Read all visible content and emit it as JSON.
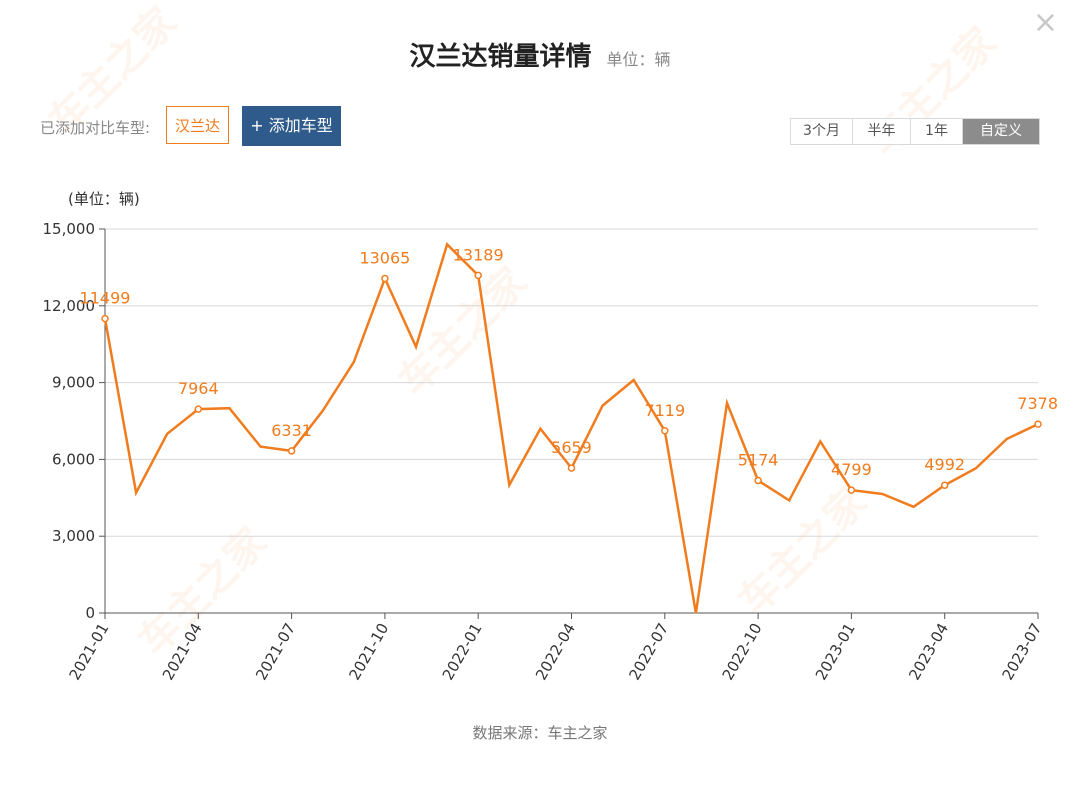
{
  "header": {
    "title": "汉兰达销量详情",
    "unit_label": "单位：辆",
    "close_symbol": "×"
  },
  "compare": {
    "label": "已添加对比车型:",
    "models": [
      "汉兰达"
    ],
    "add_button": "+ 添加车型"
  },
  "ranges": {
    "options": [
      "3个月",
      "半年",
      "1年",
      "自定义"
    ],
    "selected": "自定义"
  },
  "footer": {
    "source": "数据来源：车主之家"
  },
  "watermark": "车主之家",
  "colors": {
    "line": "#f07c1e",
    "accent_button": "#2e5b8b",
    "active_range": "#8c8c8c"
  },
  "chart_data": {
    "type": "line",
    "title": "",
    "ylabel": "(单位：辆)",
    "ylim": [
      0,
      15000
    ],
    "yticks": [
      "0",
      "3,000",
      "6,000",
      "9,000",
      "12,000",
      "15,000"
    ],
    "ytick_values": [
      0,
      3000,
      6000,
      9000,
      12000,
      15000
    ],
    "x": [
      "2021-01",
      "2021-02",
      "2021-03",
      "2021-04",
      "2021-05",
      "2021-06",
      "2021-07",
      "2021-08",
      "2021-09",
      "2021-10",
      "2021-11",
      "2021-12",
      "2022-01",
      "2022-02",
      "2022-03",
      "2022-04",
      "2022-05",
      "2022-06",
      "2022-07",
      "2022-08",
      "2022-09",
      "2022-10",
      "2022-11",
      "2022-12",
      "2023-01",
      "2023-02",
      "2023-03",
      "2023-04",
      "2023-05",
      "2023-06",
      "2023-07"
    ],
    "xticks": [
      "2021-01",
      "2021-04",
      "2021-07",
      "2021-10",
      "2022-01",
      "2022-04",
      "2022-07",
      "2022-10",
      "2023-01",
      "2023-04",
      "2023-07"
    ],
    "series": [
      {
        "values": [
          11499,
          4700,
          7000,
          7964,
          8000,
          6500,
          6331,
          7900,
          9800,
          13065,
          10400,
          14400,
          13189,
          5000,
          7200,
          5659,
          8100,
          9100,
          7119,
          0,
          8200,
          5174,
          4400,
          6700,
          4799,
          4650,
          4150,
          4992,
          5650,
          6800,
          7378
        ],
        "labeled_points": [
          {
            "x": "2021-01",
            "label": "11499"
          },
          {
            "x": "2021-04",
            "label": "7964"
          },
          {
            "x": "2021-07",
            "label": "6331"
          },
          {
            "x": "2021-10",
            "label": "13065"
          },
          {
            "x": "2022-01",
            "label": "13189"
          },
          {
            "x": "2022-04",
            "label": "5659"
          },
          {
            "x": "2022-07",
            "label": "7119"
          },
          {
            "x": "2022-10",
            "label": "5174"
          },
          {
            "x": "2023-01",
            "label": "4799"
          },
          {
            "x": "2023-04",
            "label": "4992"
          },
          {
            "x": "2023-07",
            "label": "7378"
          }
        ]
      }
    ],
    "grid": true
  }
}
